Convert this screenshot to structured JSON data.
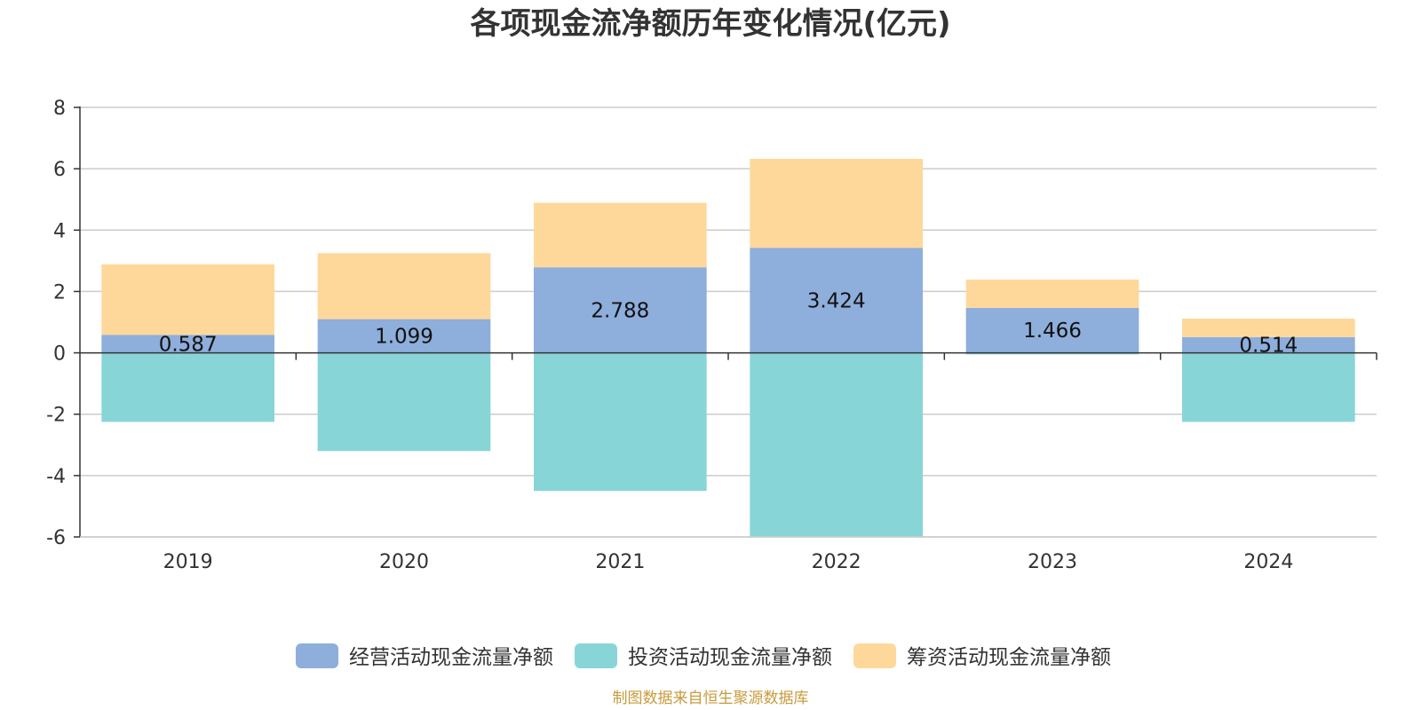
{
  "chart_data": {
    "type": "bar",
    "stacked": true,
    "title": "各项现金流净额历年变化情况(亿元)",
    "categories": [
      "2019",
      "2020",
      "2021",
      "2022",
      "2023",
      "2024"
    ],
    "ylim": [
      -6,
      8
    ],
    "yticks": [
      8,
      6,
      4,
      2,
      0,
      -2,
      -4,
      -6
    ],
    "grid": true,
    "legend_position": "bottom",
    "series": [
      {
        "name": "经营活动现金流量净额",
        "color": "#8eaedb",
        "values": [
          0.587,
          1.099,
          2.788,
          3.424,
          1.466,
          0.514
        ],
        "labels": [
          "0.587",
          "1.099",
          "2.788",
          "3.424",
          "1.466",
          "0.514"
        ]
      },
      {
        "name": "投资活动现金流量净额",
        "color": "#88d5d8",
        "values": [
          -2.25,
          -3.2,
          -4.5,
          -6.0,
          -0.05,
          -2.25
        ]
      },
      {
        "name": "筹资活动现金流量净额",
        "color": "#fed89b",
        "values": [
          2.3,
          2.15,
          2.1,
          2.9,
          0.92,
          0.6
        ]
      }
    ],
    "source": "制图数据来自恒生聚源数据库"
  }
}
